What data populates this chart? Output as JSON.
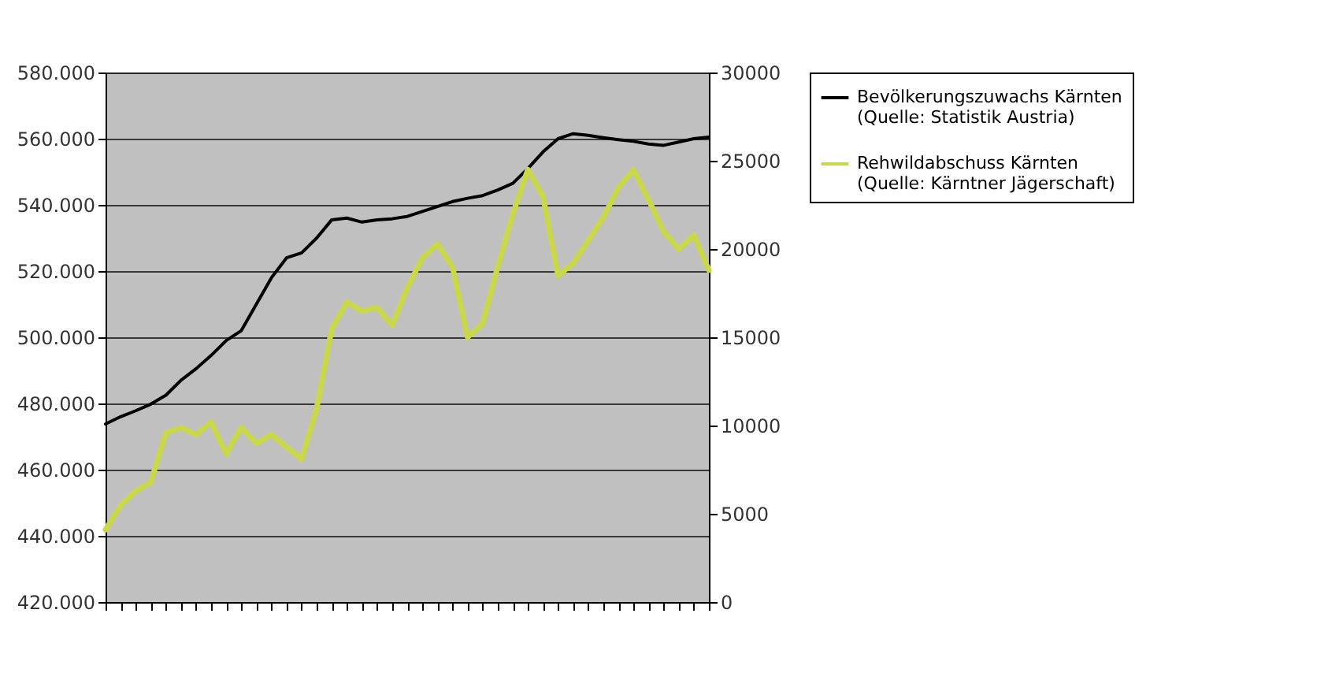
{
  "chart_data": {
    "type": "line",
    "categories": [
      null,
      null,
      null,
      null,
      null,
      null,
      null,
      null,
      null,
      null,
      null,
      null,
      null,
      null,
      null,
      null,
      null,
      null,
      null,
      null,
      null,
      null,
      null,
      null,
      null,
      null,
      null,
      null,
      null,
      null,
      null,
      null,
      null,
      null,
      null,
      null,
      null,
      null,
      null,
      null,
      null
    ],
    "series": [
      {
        "name": "Bevölkerungszuwachs Kärnten (Quelle: Statistik Austria)",
        "color": "#000000",
        "values": [
          473800,
          476000,
          477800,
          479800,
          482500,
          487000,
          490500,
          494500,
          499000,
          502000,
          510000,
          518000,
          524000,
          525500,
          530000,
          535500,
          536000,
          534800,
          535500,
          535800,
          536500,
          538000,
          539500,
          541000,
          542000,
          542800,
          544500,
          546500,
          551000,
          556000,
          560000,
          561500,
          561000,
          560300,
          559700,
          559200,
          558400,
          558000,
          559000,
          560000,
          560500
        ]
      },
      {
        "name": "Rehwildabschuss Kärnten (Quelle: Kärntner Jägerschaft)",
        "color": "#c8d84a",
        "axis": "y2",
        "values": [
          4100,
          5500,
          6300,
          6800,
          9600,
          9900,
          9500,
          10200,
          8400,
          9900,
          9000,
          9500,
          8800,
          8100,
          11000,
          15500,
          17000,
          16500,
          16700,
          15700,
          17800,
          19500,
          20300,
          19000,
          15000,
          15800,
          19000,
          22000,
          24500,
          23000,
          18500,
          19200,
          20500,
          21800,
          23500,
          24500,
          22800,
          21000,
          20000,
          20800,
          18800
        ]
      }
    ],
    "ylim": [
      420000,
      580000
    ],
    "yticks": [
      {
        "value": 420000,
        "label": "420.000"
      },
      {
        "value": 440000,
        "label": "440.000"
      },
      {
        "value": 460000,
        "label": "460.000"
      },
      {
        "value": 480000,
        "label": "480.000"
      },
      {
        "value": 500000,
        "label": "500.000"
      },
      {
        "value": 520000,
        "label": "520.000"
      },
      {
        "value": 540000,
        "label": "540.000"
      },
      {
        "value": 560000,
        "label": "560.000"
      },
      {
        "value": 580000,
        "label": "580.000"
      }
    ],
    "y2lim": [
      0,
      30000
    ],
    "y2ticks": [
      0,
      5000,
      10000,
      15000,
      20000,
      25000,
      30000
    ],
    "grid": "y",
    "tick_labels": "y",
    "legend": "right"
  }
}
